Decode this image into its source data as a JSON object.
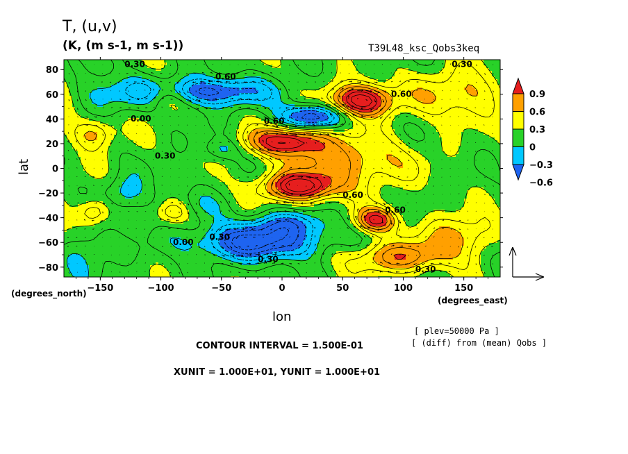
{
  "chart_data": {
    "type": "heatmap",
    "title": "T, (u,v)",
    "units_label": "(K, (m s-1, m s-1))",
    "run_label": "T39L48_ksc_Qobs3keq",
    "xlabel": "lon",
    "ylabel": "lat",
    "x_units": "(degrees_east)",
    "y_units": "(degrees_north)",
    "xlim": [
      -180,
      180
    ],
    "ylim": [
      -88,
      88
    ],
    "x_ticks": [
      -150,
      -100,
      -50,
      0,
      50,
      100,
      150
    ],
    "y_ticks": [
      80,
      60,
      40,
      20,
      0,
      -20,
      -40,
      -60,
      -80
    ],
    "colorbar": {
      "levels": [
        "0.9",
        "0.6",
        "0.3",
        "0",
        "-0.3",
        "-0.6"
      ],
      "colors": [
        "#1e64f0",
        "#00c8ff",
        "#28d228",
        "#ffff00",
        "#ffa000",
        "#e61e1e"
      ]
    },
    "contour_labels": [
      {
        "text": "0.30",
        "lon": -130,
        "lat": 82
      },
      {
        "text": "0.60",
        "lon": -55,
        "lat": 72
      },
      {
        "text": "0.00",
        "lon": -125,
        "lat": 38
      },
      {
        "text": "0.30",
        "lon": -105,
        "lat": 8
      },
      {
        "text": "0.60",
        "lon": -15,
        "lat": 36
      },
      {
        "text": "0.60",
        "lon": 90,
        "lat": 58
      },
      {
        "text": "0.30",
        "lon": 140,
        "lat": 82
      },
      {
        "text": "0.60",
        "lon": 50,
        "lat": -24
      },
      {
        "text": "0.60",
        "lon": 85,
        "lat": -36
      },
      {
        "text": "0.00",
        "lon": -90,
        "lat": -62
      },
      {
        "text": "0.30",
        "lon": -60,
        "lat": -58
      },
      {
        "text": "0.30",
        "lon": -20,
        "lat": -76
      },
      {
        "text": "0.30",
        "lon": 110,
        "lat": -84
      }
    ],
    "features": [
      {
        "lon": 65,
        "lat": 55,
        "amp": 1.15,
        "sx": 18,
        "sy": 9
      },
      {
        "lon": 15,
        "lat": -15,
        "amp": 1.0,
        "sx": 22,
        "sy": 8
      },
      {
        "lon": 5,
        "lat": 22,
        "amp": 0.95,
        "sx": 22,
        "sy": 8
      },
      {
        "lon": 78,
        "lat": -42,
        "amp": 0.85,
        "sx": 12,
        "sy": 7
      },
      {
        "lon": 55,
        "lat": 5,
        "amp": 0.55,
        "sx": 35,
        "sy": 14
      },
      {
        "lon": 150,
        "lat": 60,
        "amp": 0.45,
        "sx": 30,
        "sy": 14
      },
      {
        "lon": 95,
        "lat": -72,
        "amp": 0.6,
        "sx": 30,
        "sy": 9
      },
      {
        "lon": 150,
        "lat": -55,
        "amp": 0.45,
        "sx": 25,
        "sy": 12
      },
      {
        "lon": -155,
        "lat": 28,
        "amp": 0.5,
        "sx": 12,
        "sy": 9
      },
      {
        "lon": -155,
        "lat": -35,
        "amp": 0.5,
        "sx": 10,
        "sy": 8
      },
      {
        "lon": -95,
        "lat": 58,
        "amp": 0.45,
        "sx": 12,
        "sy": 8
      },
      {
        "lon": -90,
        "lat": -35,
        "amp": 0.45,
        "sx": 10,
        "sy": 7
      },
      {
        "lon": -65,
        "lat": 62,
        "amp": -0.75,
        "sx": 38,
        "sy": 8
      },
      {
        "lon": 25,
        "lat": 42,
        "amp": -0.85,
        "sx": 18,
        "sy": 7
      },
      {
        "lon": -20,
        "lat": -60,
        "amp": -0.85,
        "sx": 38,
        "sy": 10
      },
      {
        "lon": 5,
        "lat": -45,
        "amp": -0.45,
        "sx": 22,
        "sy": 7
      },
      {
        "lon": -150,
        "lat": 60,
        "amp": -0.35,
        "sx": 20,
        "sy": 12
      },
      {
        "lon": -165,
        "lat": -65,
        "amp": -0.35,
        "sx": 15,
        "sy": 15
      },
      {
        "lon": -130,
        "lat": -20,
        "amp": -0.3,
        "sx": 12,
        "sy": 10
      },
      {
        "lon": -50,
        "lat": 15,
        "amp": -0.3,
        "sx": 10,
        "sy": 6
      },
      {
        "lon": -80,
        "lat": -30,
        "amp": -0.15,
        "sx": 30,
        "sy": 8
      }
    ],
    "background_level": 0.22
  },
  "footer": {
    "contour_interval": "CONTOUR INTERVAL = 1.500E-01",
    "units": "XUNIT = 1.000E+01, YUNIT = 1.000E+01",
    "plev": "[ plev=50000 Pa ]",
    "diff": "[ (diff) from (mean) Qobs ]"
  }
}
